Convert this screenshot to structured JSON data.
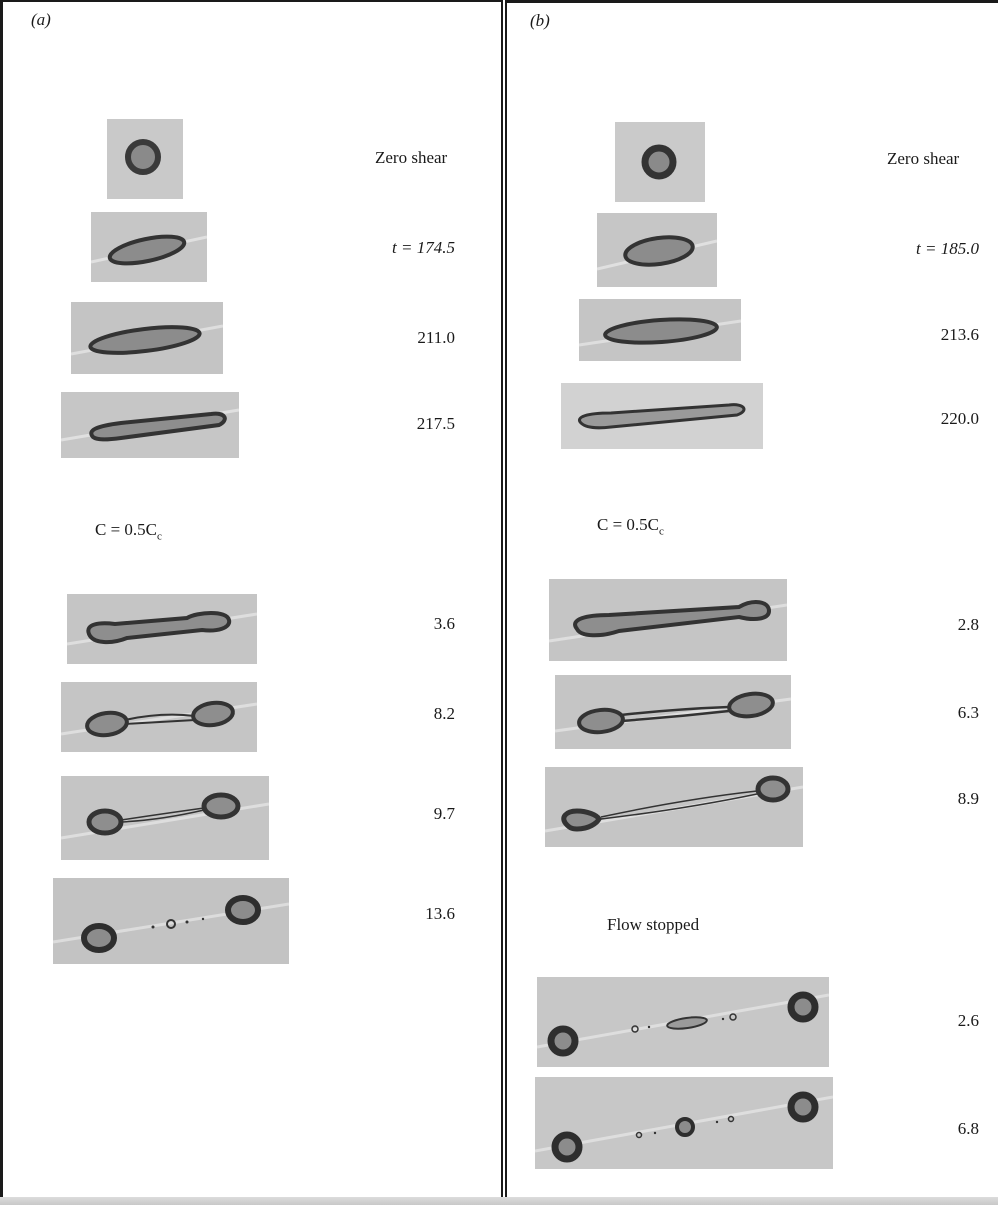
{
  "panel_a": {
    "label": "(a)",
    "zero_shear": "Zero shear",
    "times_deform": [
      "t = 174.5",
      "211.0",
      "217.5"
    ],
    "ratio": "C = 0.5C",
    "ratio_sub": "c",
    "times_relax": [
      "3.6",
      "8.2",
      "9.7",
      "13.6"
    ]
  },
  "panel_b": {
    "label": "(b)",
    "zero_shear": "Zero shear",
    "times_deform": [
      "t = 185.0",
      "213.6",
      "220.0"
    ],
    "ratio": "C = 0.5C",
    "ratio_sub": "c",
    "times_relax": [
      "2.8",
      "6.3",
      "8.9"
    ],
    "flow_stopped": "Flow stopped",
    "times_stopped": [
      "2.6",
      "6.8"
    ]
  }
}
